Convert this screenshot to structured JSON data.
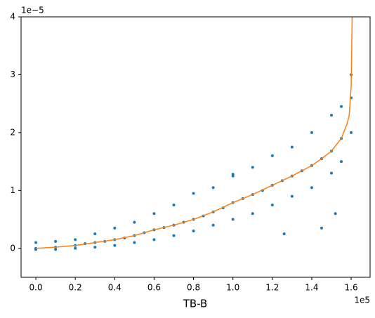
{
  "chart_data": {
    "type": "scatter",
    "x_label": "TB-B",
    "x_offset_text": "1e5",
    "y_offset_text": "1e−5",
    "xlim": [
      -0.075,
      1.696
    ],
    "ylim": [
      -0.5,
      4
    ],
    "xticks": [
      {
        "value": 0,
        "label": "0.0"
      },
      {
        "value": 0.2,
        "label": "0.2"
      },
      {
        "value": 0.4,
        "label": "0.4"
      },
      {
        "value": 0.6,
        "label": "0.6"
      },
      {
        "value": 0.8,
        "label": "0.8"
      },
      {
        "value": 1.0,
        "label": "1.0"
      },
      {
        "value": 1.2,
        "label": "1.2"
      },
      {
        "value": 1.4,
        "label": "1.4"
      },
      {
        "value": 1.6,
        "label": "1.6"
      }
    ],
    "yticks": [
      0,
      1,
      2,
      3,
      4
    ],
    "series": [
      {
        "kind": "points",
        "color": "#1f77b4",
        "x": [
          0,
          0,
          0,
          0.1,
          0.1,
          0.1,
          0.2,
          0.2,
          0.2,
          0.3,
          0.3,
          0.3,
          0.4,
          0.4,
          0.4,
          0.5,
          0.5,
          0.5,
          0.6,
          0.6,
          0.6,
          0.7,
          0.7,
          0.7,
          0.8,
          0.8,
          0.8,
          0.9,
          0.9,
          0.9,
          1.0,
          1.0,
          1.0,
          1.1,
          1.1,
          1.1,
          1.2,
          1.2,
          1.2,
          1.3,
          1.3,
          1.3,
          1.4,
          1.4,
          1.4,
          1.5,
          1.5,
          1.5,
          1.55,
          1.55,
          1.55,
          1.6,
          1.6,
          1.6,
          1.0,
          1.45,
          1.52,
          1.26,
          0.25,
          0.35,
          0.45,
          0.55,
          0.65,
          0.75,
          0.85,
          0.95,
          1.05,
          1.15,
          1.25,
          1.35,
          1.45
        ],
        "y": [
          0.1,
          0.0,
          -0.02,
          0.12,
          0.02,
          -0.02,
          0.15,
          0.05,
          0.0,
          0.25,
          0.1,
          0.02,
          0.35,
          0.15,
          0.05,
          0.45,
          0.22,
          0.1,
          0.6,
          0.32,
          0.15,
          0.75,
          0.4,
          0.22,
          0.95,
          0.5,
          0.3,
          1.05,
          0.63,
          0.4,
          1.25,
          0.79,
          0.5,
          1.4,
          0.93,
          0.6,
          1.6,
          1.09,
          0.75,
          1.75,
          1.25,
          0.9,
          2.0,
          1.43,
          1.05,
          2.3,
          1.68,
          1.3,
          2.45,
          1.9,
          1.5,
          3.0,
          2.6,
          2.0,
          1.28,
          0.35,
          0.6,
          0.25,
          0.08,
          0.12,
          0.18,
          0.27,
          0.36,
          0.45,
          0.56,
          0.7,
          0.86,
          1.0,
          1.17,
          1.34,
          1.55
        ]
      },
      {
        "kind": "line",
        "color": "#ff7f0e",
        "x": [
          0,
          0.1,
          0.2,
          0.3,
          0.4,
          0.5,
          0.6,
          0.7,
          0.8,
          0.9,
          1.0,
          1.1,
          1.2,
          1.3,
          1.4,
          1.45,
          1.5,
          1.55,
          1.58,
          1.59,
          1.6,
          1.605
        ],
        "y": [
          0.0,
          0.02,
          0.05,
          0.1,
          0.15,
          0.22,
          0.32,
          0.4,
          0.5,
          0.63,
          0.79,
          0.93,
          1.09,
          1.25,
          1.43,
          1.55,
          1.68,
          1.9,
          2.16,
          2.3,
          2.8,
          4.0
        ]
      }
    ]
  }
}
